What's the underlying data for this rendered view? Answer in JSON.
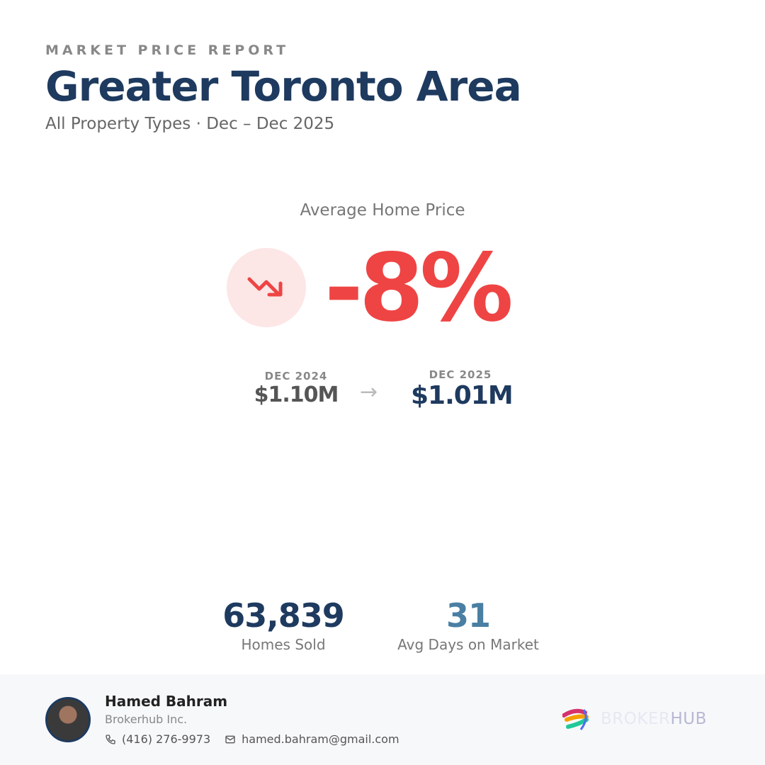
{
  "header": {
    "eyebrow": "MARKET PRICE REPORT",
    "title": "Greater Toronto Area",
    "subtitle": "All Property Types · Dec – Dec 2025"
  },
  "main": {
    "metric_label": "Average Home Price",
    "change": "-8%",
    "trend_icon": "trending-down-icon",
    "colors": {
      "negative": "#ef4444",
      "primary": "#1e3a5f",
      "accent": "#4a7fa3"
    },
    "from": {
      "period": "DEC 2024",
      "value": "$1.10M"
    },
    "arrow": "→",
    "to": {
      "period": "DEC 2025",
      "value": "$1.01M"
    }
  },
  "stats": [
    {
      "value": "63,839",
      "label": "Homes Sold"
    },
    {
      "value": "31",
      "label": "Avg Days on Market"
    }
  ],
  "footer": {
    "name": "Hamed Bahram",
    "company": "Brokerhub Inc.",
    "phone": "(416) 276-9973",
    "email": "hamed.bahram@gmail.com",
    "logo_a": "BROKER",
    "logo_b": "HUB"
  }
}
